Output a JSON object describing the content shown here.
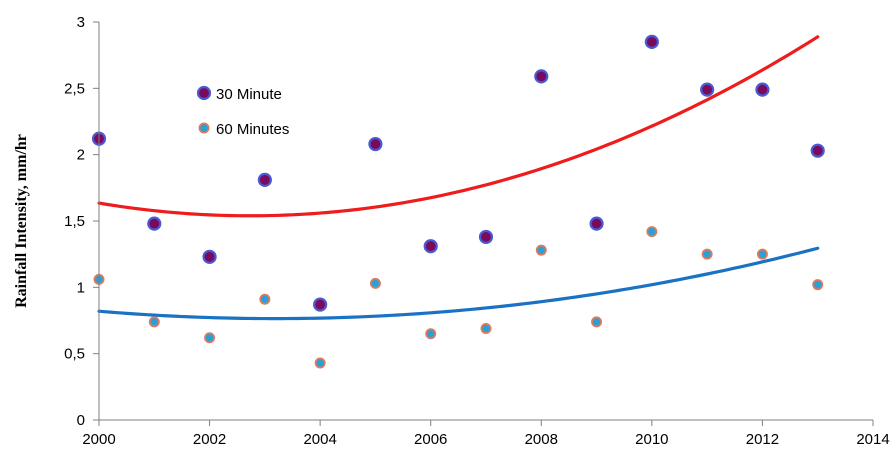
{
  "chart_data": {
    "type": "scatter",
    "title": "",
    "xlabel": "",
    "ylabel": "Rainfall Intensity, mm/hr",
    "xlim": [
      2000,
      2014
    ],
    "ylim": [
      0,
      3
    ],
    "x_ticks": [
      2000,
      2002,
      2004,
      2006,
      2008,
      2010,
      2012,
      2014
    ],
    "y_ticks": [
      0,
      0.5,
      1,
      1.5,
      2,
      2.5,
      3
    ],
    "y_tick_labels": [
      "0",
      "0,5",
      "1",
      "1,5",
      "2",
      "2,5",
      "3"
    ],
    "grid": false,
    "legend_position": "top-left",
    "series": [
      {
        "name": "30 Minute",
        "marker_fill": "#7a0a5e",
        "marker_stroke": "#4a5ad0",
        "trend_color": "#ee1c1c",
        "x": [
          2000,
          2001,
          2002,
          2003,
          2004,
          2005,
          2006,
          2007,
          2008,
          2009,
          2010,
          2011,
          2012,
          2013
        ],
        "values": [
          2.12,
          1.48,
          1.23,
          1.81,
          0.87,
          2.08,
          1.31,
          1.38,
          2.59,
          1.48,
          2.85,
          2.49,
          2.49,
          2.03
        ],
        "trend_coefficients": [
          1.635,
          -0.07,
          0.0128
        ]
      },
      {
        "name": "60 Minutes",
        "marker_fill": "#2aa0d8",
        "marker_stroke": "#e07a5a",
        "trend_color": "#1a72c4",
        "x": [
          2000,
          2001,
          2002,
          2003,
          2004,
          2005,
          2006,
          2007,
          2008,
          2009,
          2010,
          2011,
          2012,
          2013
        ],
        "values": [
          1.06,
          0.74,
          0.62,
          0.91,
          0.43,
          1.03,
          0.65,
          0.69,
          1.28,
          0.74,
          1.42,
          1.25,
          1.25,
          1.02
        ],
        "trend_coefficients": [
          0.82,
          -0.035,
          0.0055
        ]
      }
    ]
  }
}
